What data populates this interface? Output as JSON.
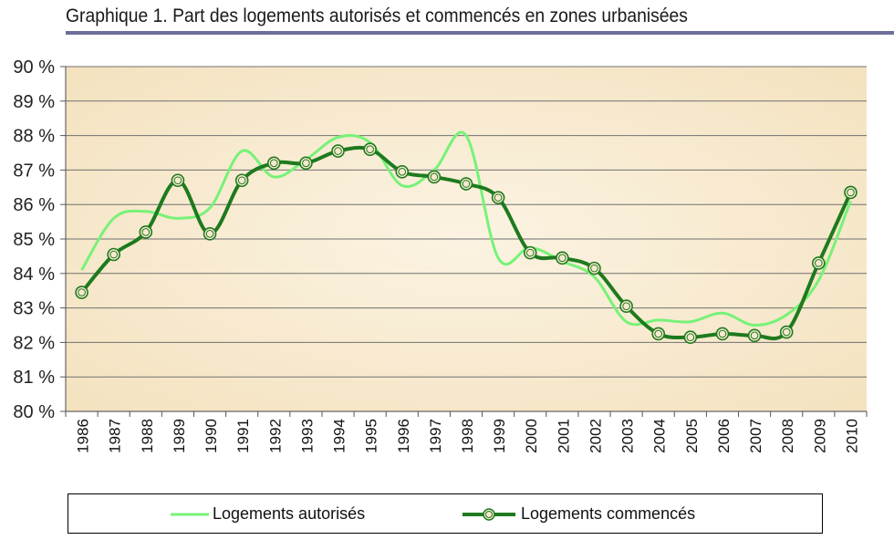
{
  "title": "Graphique 1. Part des logements autorisés et commencés en zones urbanisées",
  "chart_data": {
    "type": "line",
    "x": [
      "1986",
      "1987",
      "1988",
      "1989",
      "1990",
      "1991",
      "1992",
      "1993",
      "1994",
      "1995",
      "1996",
      "1997",
      "1998",
      "1999",
      "2000",
      "2001",
      "2002",
      "2003",
      "2004",
      "2005",
      "2006",
      "2007",
      "2008",
      "2009",
      "2010"
    ],
    "ylim": [
      80,
      90
    ],
    "y_ticks": [
      "80 %",
      "81 %",
      "82 %",
      "83 %",
      "84 %",
      "85 %",
      "86 %",
      "87 %",
      "88 %",
      "89 %",
      "90 %"
    ],
    "grid": true,
    "legend_position": "bottom",
    "series": [
      {
        "name": "Logements autorisés",
        "color": "#77f277",
        "marker": "none",
        "values": [
          84.1,
          85.6,
          85.8,
          85.6,
          85.9,
          87.55,
          86.8,
          87.3,
          87.95,
          87.8,
          86.55,
          87.0,
          88.0,
          84.45,
          84.75,
          84.35,
          83.9,
          82.6,
          82.65,
          82.6,
          82.85,
          82.5,
          82.8,
          83.8,
          86.1
        ]
      },
      {
        "name": "Logements commencés",
        "color": "#1e7a1e",
        "marker": "circle",
        "values": [
          83.45,
          84.55,
          85.2,
          86.7,
          85.15,
          86.7,
          87.2,
          87.2,
          87.55,
          87.6,
          86.95,
          86.8,
          86.6,
          86.2,
          84.6,
          84.45,
          84.15,
          83.05,
          82.25,
          82.15,
          82.25,
          82.2,
          82.3,
          84.3,
          86.35
        ]
      }
    ]
  },
  "legend": {
    "items": [
      {
        "label": "Logements autorisés"
      },
      {
        "label": "Logements commencés"
      }
    ]
  },
  "colors": {
    "plot_background": "#f7e9cf",
    "grid": "#707070",
    "title_rule": "#6b6f9a"
  }
}
